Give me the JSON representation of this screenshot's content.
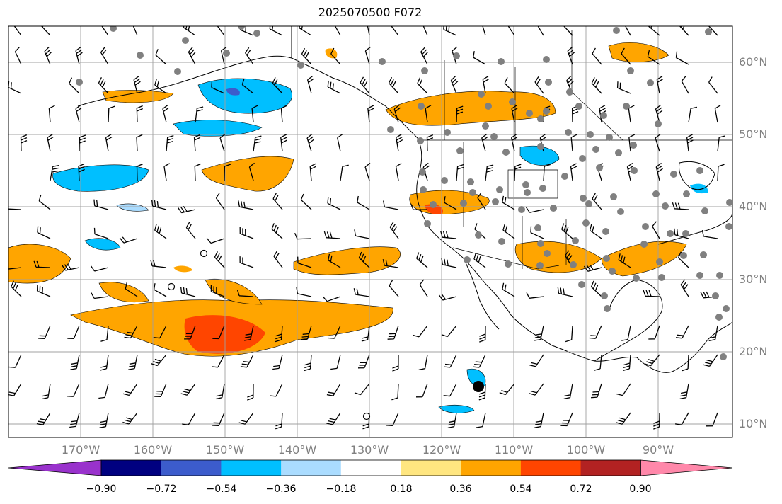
{
  "title": "2025070500 F072",
  "axes": {
    "lat_labels": [
      "60°N",
      "50°N",
      "40°N",
      "30°N",
      "20°N",
      "10°N"
    ],
    "lon_labels": [
      "170°W",
      "160°W",
      "150°W",
      "140°W",
      "130°W",
      "120°W",
      "110°W",
      "100°W",
      "90°W"
    ]
  },
  "colorbar": {
    "labels": [
      "−0.90",
      "−0.72",
      "−0.54",
      "−0.36",
      "−0.18",
      "0.18",
      "0.36",
      "0.54",
      "0.72",
      "0.90"
    ],
    "colors": [
      "#9932cc",
      "#000080",
      "#3c5ccc",
      "#00bfff",
      "#aadcff",
      "#ffffff",
      "#ffe680",
      "#ffa500",
      "#ff4500",
      "#b22222",
      "#ff88aa"
    ]
  },
  "colors": {
    "grid": "#a0a0a0",
    "coast": "#000000",
    "station": "#808080"
  }
}
